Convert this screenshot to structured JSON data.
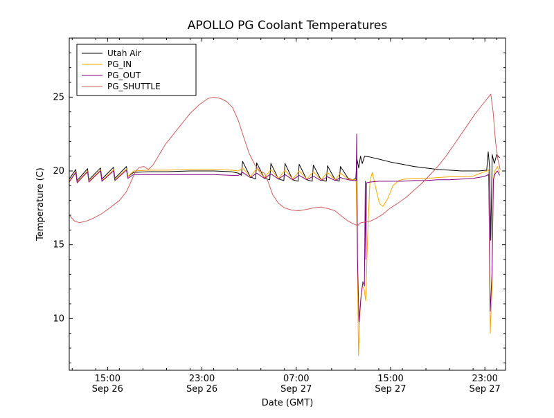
{
  "chart_data": {
    "type": "line",
    "title": "APOLLO PG Coolant Temperatures",
    "xlabel": "Date (GMT)",
    "ylabel": "Temperature (C)",
    "x_encoding": "hours since Sep 26 00:00 GMT",
    "xlim": [
      11.75,
      48.75
    ],
    "ylim": [
      6.5,
      29
    ],
    "grid": false,
    "legend_position": "upper left",
    "xticks": [
      {
        "value": 15,
        "time": "15:00",
        "date": "Sep 26"
      },
      {
        "value": 23,
        "time": "23:00",
        "date": "Sep 26"
      },
      {
        "value": 31,
        "time": "07:00",
        "date": "Sep 27"
      },
      {
        "value": 39,
        "time": "15:00",
        "date": "Sep 27"
      },
      {
        "value": 47,
        "time": "23:00",
        "date": "Sep 27"
      }
    ],
    "xminor_step": 2,
    "yticks": [
      10,
      15,
      20,
      25
    ],
    "yminor_step": 1,
    "series": [
      {
        "name": "Utah Air",
        "color": "#000000",
        "points": [
          [
            11.75,
            19.45
          ],
          [
            12.3,
            20.1
          ],
          [
            12.42,
            19.35
          ],
          [
            13.3,
            20.15
          ],
          [
            13.42,
            19.4
          ],
          [
            14.4,
            20.2
          ],
          [
            14.52,
            19.45
          ],
          [
            15.5,
            20.25
          ],
          [
            15.62,
            19.5
          ],
          [
            16.6,
            20.3
          ],
          [
            16.72,
            19.6
          ],
          [
            17.2,
            19.9
          ],
          [
            18.5,
            19.95
          ],
          [
            20,
            19.95
          ],
          [
            22,
            20.0
          ],
          [
            24,
            20.0
          ],
          [
            25.5,
            19.95
          ],
          [
            26.1,
            19.85
          ],
          [
            26.35,
            19.7
          ],
          [
            26.45,
            20.65
          ],
          [
            27.1,
            19.6
          ],
          [
            27.55,
            19.45
          ],
          [
            27.65,
            20.55
          ],
          [
            28.3,
            19.5
          ],
          [
            28.75,
            19.4
          ],
          [
            28.85,
            20.5
          ],
          [
            29.5,
            19.45
          ],
          [
            29.95,
            19.35
          ],
          [
            30.05,
            20.5
          ],
          [
            30.7,
            19.4
          ],
          [
            31.15,
            19.3
          ],
          [
            31.25,
            20.45
          ],
          [
            31.9,
            19.4
          ],
          [
            32.35,
            19.3
          ],
          [
            32.45,
            20.4
          ],
          [
            33.1,
            19.4
          ],
          [
            33.55,
            19.3
          ],
          [
            33.65,
            20.35
          ],
          [
            34.3,
            19.4
          ],
          [
            34.65,
            19.3
          ],
          [
            34.75,
            20.3
          ],
          [
            35.4,
            19.5
          ],
          [
            35.8,
            19.4
          ],
          [
            36.05,
            19.5
          ],
          [
            36.15,
            20.8
          ],
          [
            36.3,
            20.2
          ],
          [
            36.45,
            21.0
          ],
          [
            36.6,
            20.5
          ],
          [
            36.8,
            21.0
          ],
          [
            37.2,
            20.95
          ],
          [
            38,
            20.8
          ],
          [
            39,
            20.6
          ],
          [
            40,
            20.45
          ],
          [
            41,
            20.3
          ],
          [
            42,
            20.2
          ],
          [
            43,
            20.1
          ],
          [
            44,
            20.05
          ],
          [
            45,
            20.0
          ],
          [
            46.5,
            20.0
          ],
          [
            47.15,
            20.05
          ],
          [
            47.28,
            21.3
          ],
          [
            47.4,
            20.3
          ],
          [
            47.5,
            15.3
          ],
          [
            47.62,
            21.1
          ],
          [
            47.8,
            20.5
          ],
          [
            48.0,
            21.1
          ],
          [
            48.25,
            20.9
          ]
        ]
      },
      {
        "name": "PG_IN",
        "color": "#ffa500",
        "points": [
          [
            11.75,
            19.3
          ],
          [
            12.3,
            19.95
          ],
          [
            12.42,
            19.25
          ],
          [
            13.3,
            20.0
          ],
          [
            13.42,
            19.3
          ],
          [
            14.4,
            20.05
          ],
          [
            14.52,
            19.35
          ],
          [
            15.5,
            20.1
          ],
          [
            15.62,
            19.4
          ],
          [
            16.6,
            20.15
          ],
          [
            16.72,
            19.6
          ],
          [
            17.2,
            20.0
          ],
          [
            18.5,
            20.05
          ],
          [
            20,
            20.05
          ],
          [
            22,
            20.1
          ],
          [
            24,
            20.1
          ],
          [
            25.5,
            20.05
          ],
          [
            26.1,
            20.0
          ],
          [
            26.45,
            20.2
          ],
          [
            27.1,
            19.6
          ],
          [
            27.65,
            20.15
          ],
          [
            28.3,
            19.55
          ],
          [
            28.85,
            20.1
          ],
          [
            29.5,
            19.5
          ],
          [
            30.05,
            20.05
          ],
          [
            30.7,
            19.45
          ],
          [
            31.25,
            20.0
          ],
          [
            31.9,
            19.45
          ],
          [
            32.45,
            19.95
          ],
          [
            33.1,
            19.4
          ],
          [
            33.65,
            19.9
          ],
          [
            34.3,
            19.4
          ],
          [
            34.75,
            19.85
          ],
          [
            35.4,
            19.45
          ],
          [
            35.9,
            19.4
          ],
          [
            36.08,
            19.4
          ],
          [
            36.18,
            14.0
          ],
          [
            36.28,
            7.5
          ],
          [
            36.45,
            11.2
          ],
          [
            36.6,
            12.2
          ],
          [
            36.75,
            12.0
          ],
          [
            36.9,
            11.2
          ],
          [
            37.05,
            15.5
          ],
          [
            37.25,
            19.3
          ],
          [
            37.45,
            19.9
          ],
          [
            37.7,
            19.0
          ],
          [
            38.05,
            17.8
          ],
          [
            38.35,
            17.6
          ],
          [
            38.75,
            18.1
          ],
          [
            39.2,
            19.0
          ],
          [
            39.7,
            19.35
          ],
          [
            40.2,
            19.45
          ],
          [
            41,
            19.5
          ],
          [
            42,
            19.5
          ],
          [
            43,
            19.55
          ],
          [
            44,
            19.6
          ],
          [
            45,
            19.6
          ],
          [
            46,
            19.65
          ],
          [
            46.8,
            19.9
          ],
          [
            47.2,
            20.0
          ],
          [
            47.32,
            20.1
          ],
          [
            47.45,
            9.0
          ],
          [
            47.6,
            12.0
          ],
          [
            47.72,
            19.5
          ],
          [
            47.85,
            20.0
          ],
          [
            48.05,
            20.3
          ],
          [
            48.25,
            19.9
          ]
        ]
      },
      {
        "name": "PG_OUT",
        "color": "#800080",
        "points": [
          [
            11.75,
            19.25
          ],
          [
            12.3,
            19.9
          ],
          [
            12.42,
            19.2
          ],
          [
            13.3,
            19.95
          ],
          [
            13.42,
            19.25
          ],
          [
            14.4,
            20.0
          ],
          [
            14.52,
            19.3
          ],
          [
            15.5,
            20.0
          ],
          [
            15.62,
            19.35
          ],
          [
            16.6,
            20.05
          ],
          [
            16.72,
            19.5
          ],
          [
            17.2,
            19.75
          ],
          [
            18.5,
            19.75
          ],
          [
            20,
            19.75
          ],
          [
            22,
            19.75
          ],
          [
            24,
            19.75
          ],
          [
            25.5,
            19.7
          ],
          [
            26.1,
            19.7
          ],
          [
            26.45,
            19.9
          ],
          [
            27.1,
            19.55
          ],
          [
            27.65,
            19.85
          ],
          [
            28.3,
            19.5
          ],
          [
            28.85,
            19.8
          ],
          [
            29.5,
            19.45
          ],
          [
            30.05,
            19.75
          ],
          [
            30.7,
            19.4
          ],
          [
            31.25,
            19.7
          ],
          [
            31.9,
            19.4
          ],
          [
            32.45,
            19.65
          ],
          [
            33.1,
            19.35
          ],
          [
            33.65,
            19.6
          ],
          [
            34.3,
            19.35
          ],
          [
            34.75,
            19.55
          ],
          [
            35.4,
            19.4
          ],
          [
            35.9,
            19.35
          ],
          [
            36.08,
            19.35
          ],
          [
            36.13,
            22.5
          ],
          [
            36.2,
            14.0
          ],
          [
            36.32,
            9.8
          ],
          [
            36.5,
            11.5
          ],
          [
            36.65,
            12.5
          ],
          [
            36.78,
            12.2
          ],
          [
            36.86,
            19.3
          ],
          [
            36.9,
            14.0
          ],
          [
            36.96,
            19.2
          ],
          [
            37.3,
            19.25
          ],
          [
            38,
            19.3
          ],
          [
            39,
            19.3
          ],
          [
            40,
            19.3
          ],
          [
            41,
            19.35
          ],
          [
            42,
            19.35
          ],
          [
            43,
            19.4
          ],
          [
            44,
            19.4
          ],
          [
            45,
            19.45
          ],
          [
            46,
            19.5
          ],
          [
            46.8,
            19.6
          ],
          [
            47.2,
            19.7
          ],
          [
            47.32,
            19.8
          ],
          [
            47.45,
            10.5
          ],
          [
            47.6,
            13.0
          ],
          [
            47.72,
            19.4
          ],
          [
            47.85,
            19.8
          ],
          [
            48.05,
            20.0
          ],
          [
            48.25,
            19.7
          ]
        ]
      },
      {
        "name": "PG_SHUTTLE",
        "color": "#cd5c5c",
        "points": [
          [
            11.75,
            17.0
          ],
          [
            12.2,
            16.6
          ],
          [
            12.6,
            16.5
          ],
          [
            13.2,
            16.6
          ],
          [
            13.8,
            16.8
          ],
          [
            14.5,
            17.1
          ],
          [
            15.2,
            17.5
          ],
          [
            16.0,
            18.0
          ],
          [
            16.6,
            18.6
          ],
          [
            17.0,
            19.3
          ],
          [
            17.4,
            20.0
          ],
          [
            17.7,
            20.25
          ],
          [
            18.1,
            20.3
          ],
          [
            18.45,
            20.1
          ],
          [
            18.85,
            20.4
          ],
          [
            19.3,
            21.0
          ],
          [
            19.9,
            21.8
          ],
          [
            20.5,
            22.4
          ],
          [
            21.2,
            23.1
          ],
          [
            22.0,
            23.9
          ],
          [
            22.8,
            24.5
          ],
          [
            23.5,
            24.9
          ],
          [
            24.0,
            25.0
          ],
          [
            24.6,
            24.9
          ],
          [
            25.1,
            24.7
          ],
          [
            25.6,
            24.3
          ],
          [
            26.1,
            23.4
          ],
          [
            26.5,
            22.4
          ],
          [
            27.0,
            21.2
          ],
          [
            27.5,
            20.4
          ],
          [
            27.9,
            20.0
          ],
          [
            28.3,
            19.85
          ],
          [
            28.6,
            19.3
          ],
          [
            29.0,
            18.4
          ],
          [
            29.5,
            17.8
          ],
          [
            30.0,
            17.5
          ],
          [
            30.6,
            17.35
          ],
          [
            31.2,
            17.3
          ],
          [
            31.9,
            17.4
          ],
          [
            32.5,
            17.5
          ],
          [
            33.1,
            17.55
          ],
          [
            33.7,
            17.45
          ],
          [
            34.3,
            17.3
          ],
          [
            34.9,
            16.9
          ],
          [
            35.4,
            16.6
          ],
          [
            35.9,
            16.4
          ],
          [
            36.2,
            16.3
          ],
          [
            36.5,
            16.5
          ],
          [
            36.9,
            16.55
          ],
          [
            37.3,
            16.6
          ],
          [
            37.8,
            16.8
          ],
          [
            38.4,
            17.1
          ],
          [
            39.0,
            17.5
          ],
          [
            39.6,
            17.8
          ],
          [
            40.3,
            18.2
          ],
          [
            41.0,
            18.7
          ],
          [
            41.7,
            19.2
          ],
          [
            42.3,
            19.7
          ],
          [
            43.0,
            20.3
          ],
          [
            43.7,
            21.0
          ],
          [
            44.4,
            21.8
          ],
          [
            45.0,
            22.5
          ],
          [
            45.6,
            23.2
          ],
          [
            46.2,
            23.9
          ],
          [
            46.8,
            24.5
          ],
          [
            47.3,
            25.0
          ],
          [
            47.5,
            25.2
          ],
          [
            47.7,
            24.0
          ],
          [
            47.9,
            22.0
          ],
          [
            48.1,
            20.8
          ],
          [
            48.3,
            20.1
          ]
        ]
      }
    ]
  }
}
